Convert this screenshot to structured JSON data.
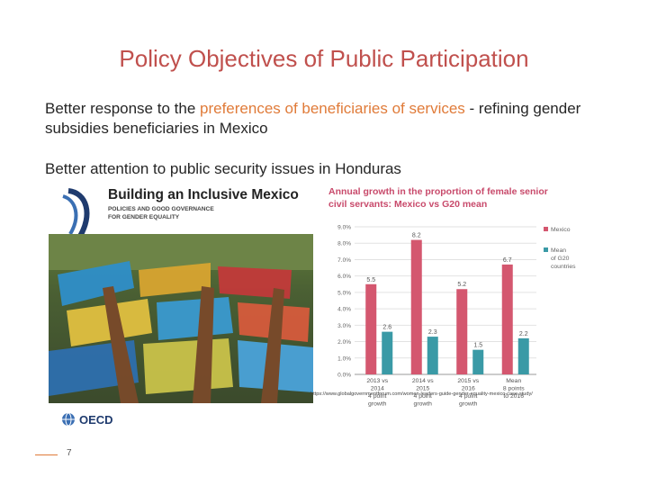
{
  "slide": {
    "title": "Policy Objectives of Public Participation",
    "bullet1_pre": "Better response to the ",
    "bullet1_hl": "preferences of beneficiaries of services",
    "bullet1_post": " - refining gender subsidies beneficiaries in Mexico",
    "bullet2": "Better attention to public security issues in Honduras",
    "url": "https://www.globalgovernmentforum.com/women-leaders-guide-gender-equality-mexico-case-study/",
    "page_number": "7"
  },
  "book": {
    "title": "Building an Inclusive Mexico",
    "subtitle_line1": "POLICIES AND GOOD GOVERNANCE",
    "subtitle_line2": "FOR GENDER EQUALITY",
    "publisher": "OECD"
  },
  "chart_data": {
    "type": "bar",
    "title_line1": "Annual growth in the proportion of female senior",
    "title_line2": "civil servants: Mexico vs G20 mean",
    "categories": [
      [
        "2013 vs",
        "2014",
        "4 point",
        "growth"
      ],
      [
        "2014 vs",
        "2015",
        "4 point",
        "growth"
      ],
      [
        "2015 vs",
        "2016",
        "4 point",
        "growth"
      ],
      [
        "Mean",
        "8 points",
        "to 2016",
        ""
      ]
    ],
    "series": [
      {
        "name": "Mexico",
        "values": [
          5.5,
          8.2,
          5.2,
          6.7
        ],
        "color": "#d4576f"
      },
      {
        "name": "Mean of G20 countries",
        "values": [
          2.6,
          2.3,
          1.5,
          2.2
        ],
        "color": "#3a9aa6"
      }
    ],
    "legend_lines": [
      [
        "Mexico"
      ],
      [
        "Mean",
        "of G20",
        "countries"
      ]
    ],
    "yticks": [
      "9.0%",
      "8.0%",
      "7.0%",
      "6.0%",
      "5.0%",
      "4.0%",
      "3.0%",
      "2.0%",
      "1.0%",
      "0.0%"
    ],
    "ylim": [
      0,
      9
    ],
    "legend": "right",
    "grid": true
  }
}
